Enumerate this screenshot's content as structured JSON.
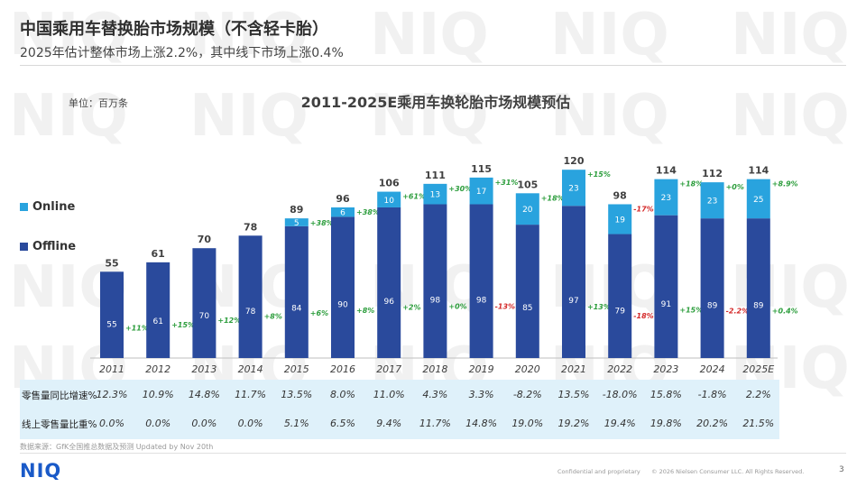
{
  "header": {
    "title": "中国乘用车替换胎市场规模（不含轻卡胎）",
    "subtitle": "2025年估计整体市场上涨2.2%，其中线下市场上涨0.4%"
  },
  "unit_label": "单位：百万条",
  "legend": [
    {
      "label": "Online",
      "color": "#29a3de"
    },
    {
      "label": "Offline",
      "color": "#2a4a9c"
    }
  ],
  "chart_data": {
    "type": "bar",
    "stacked": true,
    "title": "2011-2025E乘用车换轮胎市场规模预估",
    "ylabel": "单位：百万条",
    "ylim": [
      0,
      125
    ],
    "categories": [
      "2011",
      "2012",
      "2013",
      "2014",
      "2015",
      "2016",
      "2017",
      "2018",
      "2019",
      "2020",
      "2021",
      "2022",
      "2023",
      "2024",
      "2025E"
    ],
    "series": [
      {
        "name": "Offline",
        "color": "#2a4a9c",
        "values": [
          55,
          61,
          70,
          78,
          84,
          90,
          96,
          98,
          98,
          85,
          97,
          79,
          91,
          89,
          89
        ],
        "labels": [
          "55",
          "61",
          "70",
          "78",
          "84",
          "90",
          "96",
          "98",
          "98",
          "85",
          "97",
          "79",
          "91",
          "89",
          "89"
        ],
        "growth": [
          "+11%",
          "+15%",
          "+12%",
          "+8%",
          "+6%",
          "+8%",
          "+2%",
          "+0%",
          "-13%",
          "",
          "+13%",
          "-18%",
          "+15%",
          "-2.2%",
          "+0.4%"
        ]
      },
      {
        "name": "Online",
        "color": "#29a3de",
        "values": [
          0,
          0,
          0,
          0,
          5,
          6,
          10,
          13,
          17,
          20,
          23,
          19,
          23,
          23,
          25
        ],
        "labels": [
          "",
          "",
          "",
          "",
          "5",
          "6",
          "10",
          "13",
          "17",
          "20",
          "23",
          "19",
          "23",
          "23",
          "25"
        ],
        "growth": [
          "",
          "",
          "",
          "",
          "+38%",
          "+38%",
          "+61%",
          "+30%",
          "+31%",
          "+18%",
          "+15%",
          "-17%",
          "+18%",
          "+0%",
          "+8.9%"
        ]
      }
    ],
    "totals": [
      "55",
      "61",
      "70",
      "78",
      "89",
      "96",
      "106",
      "111",
      "115",
      "105",
      "120",
      "98",
      "114",
      "112",
      "114"
    ]
  },
  "table": {
    "rows": [
      {
        "label": "零售量同比增速%",
        "values": [
          "12.3%",
          "10.9%",
          "14.8%",
          "11.7%",
          "13.5%",
          "8.0%",
          "11.0%",
          "4.3%",
          "3.3%",
          "-8.2%",
          "13.5%",
          "-18.0%",
          "15.8%",
          "-1.8%",
          "2.2%"
        ]
      },
      {
        "label": "线上零售量比重%",
        "values": [
          "0.0%",
          "0.0%",
          "0.0%",
          "0.0%",
          "5.1%",
          "6.5%",
          "9.4%",
          "11.7%",
          "14.8%",
          "19.0%",
          "19.2%",
          "19.4%",
          "19.8%",
          "20.2%",
          "21.5%"
        ]
      }
    ]
  },
  "footer": {
    "source": "数据来源：GfK全国推总数据及预测 Updated by Nov 20th",
    "logo": "NIQ",
    "confidential": "Confidential and proprietary",
    "copyright": "© 2026 Nielsen Consumer LLC. All Rights Reserved.",
    "page_number": "3"
  },
  "colors": {
    "positive": "#2e9e3e",
    "negative": "#d42a2a",
    "table_bg": "#dff1fa"
  }
}
